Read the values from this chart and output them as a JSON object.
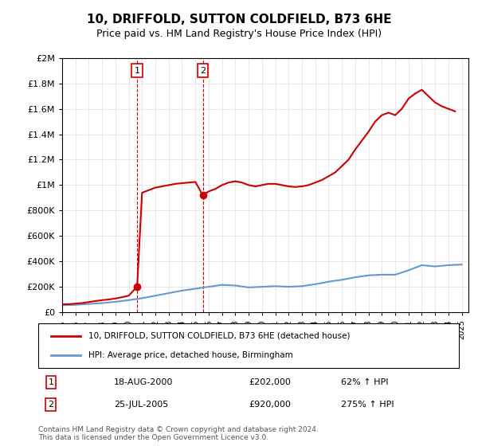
{
  "title": "10, DRIFFOLD, SUTTON COLDFIELD, B73 6HE",
  "subtitle": "Price paid vs. HM Land Registry's House Price Index (HPI)",
  "legend_line1": "10, DRIFFOLD, SUTTON COLDFIELD, B73 6HE (detached house)",
  "legend_line2": "HPI: Average price, detached house, Birmingham",
  "sale1_label": "1",
  "sale1_date": "18-AUG-2000",
  "sale1_price": "£202,000",
  "sale1_hpi": "62% ↑ HPI",
  "sale2_label": "2",
  "sale2_date": "25-JUL-2005",
  "sale2_price": "£920,000",
  "sale2_hpi": "275% ↑ HPI",
  "footnote": "Contains HM Land Registry data © Crown copyright and database right 2024.\nThis data is licensed under the Open Government Licence v3.0.",
  "red_color": "#cc0000",
  "blue_color": "#6699cc",
  "dashed_color": "#cc0000",
  "marker1_x": 2000.63,
  "marker1_y": 202000,
  "marker2_x": 2005.56,
  "marker2_y": 920000,
  "vline1_x": 2000.63,
  "vline2_x": 2005.56,
  "ylim": [
    0,
    2000000
  ],
  "xlim": [
    1995,
    2025.5
  ],
  "yticks": [
    0,
    200000,
    400000,
    600000,
    800000,
    1000000,
    1200000,
    1400000,
    1600000,
    1800000,
    2000000
  ],
  "ytick_labels": [
    "£0",
    "£200K",
    "£400K",
    "£600K",
    "£800K",
    "£1M",
    "£1.2M",
    "£1.4M",
    "£1.6M",
    "£1.8M",
    "£2M"
  ],
  "xticks": [
    1995,
    1996,
    1997,
    1998,
    1999,
    2000,
    2001,
    2002,
    2003,
    2004,
    2005,
    2006,
    2007,
    2008,
    2009,
    2010,
    2011,
    2012,
    2013,
    2014,
    2015,
    2016,
    2017,
    2018,
    2019,
    2020,
    2021,
    2022,
    2023,
    2024,
    2025
  ],
  "hpi_x": [
    1995,
    1996,
    1997,
    1998,
    1999,
    2000,
    2001,
    2002,
    2003,
    2004,
    2005,
    2006,
    2007,
    2008,
    2009,
    2010,
    2011,
    2012,
    2013,
    2014,
    2015,
    2016,
    2017,
    2018,
    2019,
    2020,
    2021,
    2022,
    2023,
    2024,
    2025
  ],
  "hpi_y": [
    55000,
    58000,
    65000,
    72000,
    82000,
    95000,
    110000,
    130000,
    150000,
    170000,
    185000,
    200000,
    215000,
    210000,
    195000,
    200000,
    205000,
    200000,
    205000,
    220000,
    240000,
    255000,
    275000,
    290000,
    295000,
    295000,
    330000,
    370000,
    360000,
    370000,
    375000
  ],
  "red_x": [
    1995.0,
    1995.5,
    1996.0,
    1996.5,
    1997.0,
    1997.5,
    1998.0,
    1998.5,
    1999.0,
    1999.5,
    2000.0,
    2000.63,
    2000.63,
    2001.0,
    2001.5,
    2002.0,
    2002.5,
    2003.0,
    2003.5,
    2004.0,
    2004.5,
    2005.0,
    2005.56,
    2005.56,
    2006.0,
    2006.5,
    2007.0,
    2007.5,
    2008.0,
    2008.5,
    2009.0,
    2009.5,
    2010.0,
    2010.5,
    2011.0,
    2011.5,
    2012.0,
    2012.5,
    2013.0,
    2013.5,
    2014.0,
    2014.5,
    2015.0,
    2015.5,
    2016.0,
    2016.5,
    2017.0,
    2017.5,
    2018.0,
    2018.5,
    2019.0,
    2019.5,
    2020.0,
    2020.5,
    2021.0,
    2021.5,
    2022.0,
    2022.5,
    2023.0,
    2023.5,
    2024.0,
    2024.5
  ],
  "red_y": [
    62000,
    63000,
    68000,
    72000,
    80000,
    88000,
    95000,
    100000,
    108000,
    118000,
    130000,
    202000,
    202000,
    940000,
    960000,
    980000,
    990000,
    1000000,
    1010000,
    1015000,
    1020000,
    1025000,
    920000,
    920000,
    950000,
    970000,
    1000000,
    1020000,
    1030000,
    1020000,
    1000000,
    990000,
    1000000,
    1010000,
    1010000,
    1000000,
    990000,
    985000,
    990000,
    1000000,
    1020000,
    1040000,
    1070000,
    1100000,
    1150000,
    1200000,
    1280000,
    1350000,
    1420000,
    1500000,
    1550000,
    1570000,
    1550000,
    1600000,
    1680000,
    1720000,
    1750000,
    1700000,
    1650000,
    1620000,
    1600000,
    1580000
  ]
}
